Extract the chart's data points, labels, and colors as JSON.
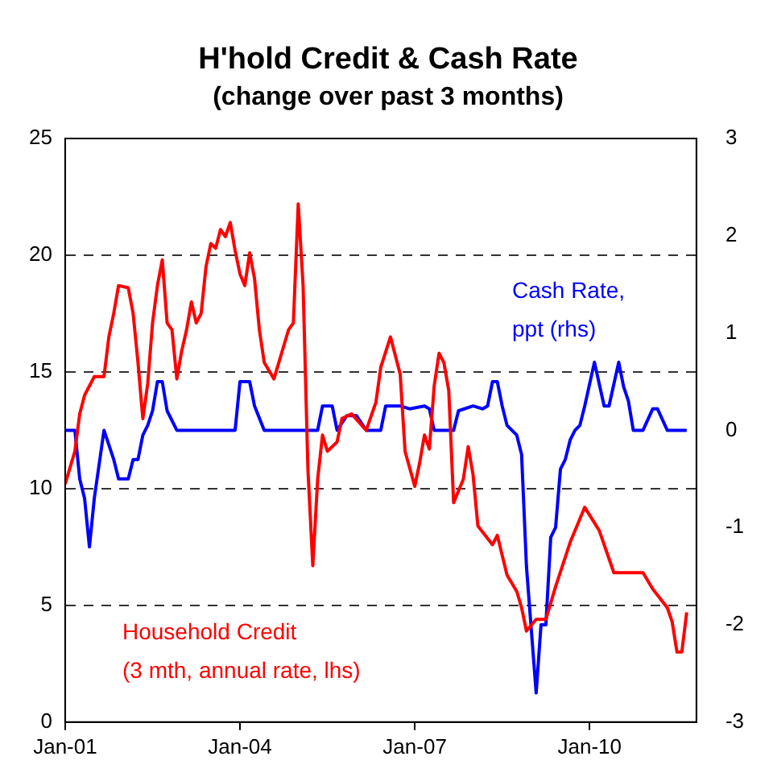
{
  "chart_data": {
    "type": "line",
    "title": "H'hold Credit & Cash Rate",
    "subtitle": "(change over past 3 months)",
    "xlim": [
      "2001-01",
      "2011-11"
    ],
    "xticks": [
      {
        "value": "2001-01",
        "label": "Jan-01"
      },
      {
        "value": "2004-01",
        "label": "Jan-04"
      },
      {
        "value": "2007-01",
        "label": "Jan-07"
      },
      {
        "value": "2010-01",
        "label": "Jan-10"
      }
    ],
    "ylim": [
      0,
      25
    ],
    "yticks": [
      0,
      5,
      10,
      15,
      20,
      25
    ],
    "y2lim": [
      -3,
      3
    ],
    "y2ticks": [
      -3,
      -2,
      -1,
      0,
      1,
      2,
      3
    ],
    "grid": "y",
    "line_style": "solid",
    "marker": "none",
    "series": [
      {
        "name": "Household Credit\n(3 mth, annual rate, lhs)",
        "color": "#ff0000",
        "x": [
          "2001-01",
          "2001-03",
          "2001-04",
          "2001-05",
          "2001-07",
          "2001-09",
          "2001-10",
          "2001-11",
          "2001-12",
          "2002-02",
          "2002-03",
          "2002-04",
          "2002-05",
          "2002-06",
          "2002-07",
          "2002-08",
          "2002-09",
          "2002-10",
          "2002-11",
          "2002-12",
          "2003-01",
          "2003-02",
          "2003-03",
          "2003-04",
          "2003-05",
          "2003-06",
          "2003-07",
          "2003-08",
          "2003-09",
          "2003-10",
          "2003-11",
          "2003-12",
          "2004-01",
          "2004-02",
          "2004-03",
          "2004-04",
          "2004-05",
          "2004-06",
          "2004-08",
          "2004-09",
          "2004-10",
          "2004-11",
          "2004-12",
          "2005-01",
          "2005-02",
          "2005-03",
          "2005-04",
          "2005-05",
          "2005-06",
          "2005-07",
          "2005-09",
          "2005-10",
          "2005-12",
          "2006-03",
          "2006-05",
          "2006-06",
          "2006-08",
          "2006-10",
          "2006-11",
          "2007-01",
          "2007-02",
          "2007-03",
          "2007-04",
          "2007-05",
          "2007-06",
          "2007-07",
          "2007-08",
          "2007-09",
          "2007-11",
          "2007-12",
          "2008-01",
          "2008-02",
          "2008-05",
          "2008-06",
          "2008-08",
          "2008-10",
          "2008-11",
          "2008-12",
          "2009-02",
          "2009-04",
          "2009-06",
          "2009-09",
          "2009-11",
          "2009-12",
          "2010-03",
          "2010-06",
          "2010-09",
          "2010-12",
          "2011-02",
          "2011-05",
          "2011-06",
          "2011-07",
          "2011-08",
          "2011-09"
        ],
        "values": [
          10.2,
          11.6,
          13.2,
          14.0,
          14.8,
          14.8,
          16.5,
          17.5,
          18.7,
          18.6,
          17.5,
          15.4,
          13.0,
          14.5,
          17.1,
          18.7,
          19.8,
          17.1,
          16.8,
          14.7,
          15.9,
          16.8,
          18.0,
          17.1,
          17.5,
          19.5,
          20.5,
          20.3,
          21.1,
          20.8,
          21.4,
          20.2,
          19.2,
          18.7,
          20.1,
          19.0,
          16.8,
          15.4,
          14.7,
          15.4,
          16.1,
          16.8,
          17.1,
          22.2,
          18.7,
          10.8,
          6.7,
          10.4,
          12.3,
          11.6,
          12.0,
          13.0,
          13.2,
          12.5,
          13.7,
          15.2,
          16.5,
          14.9,
          11.6,
          10.1,
          11.1,
          12.3,
          11.7,
          14.4,
          15.8,
          15.4,
          14.2,
          9.4,
          10.4,
          11.8,
          10.6,
          8.4,
          7.6,
          8.0,
          6.3,
          5.6,
          4.9,
          3.9,
          4.4,
          4.4,
          5.8,
          7.7,
          8.7,
          9.2,
          8.2,
          6.4,
          6.4,
          6.4,
          5.7,
          4.9,
          4.3,
          3.0,
          3.0,
          4.7
        ]
      },
      {
        "name": "Cash Rate,\nppt (rhs)",
        "color": "#0000ff",
        "axis": "y2",
        "x": [
          "2001-01",
          "2001-03",
          "2001-04",
          "2001-05",
          "2001-06",
          "2001-07",
          "2001-09",
          "2001-11",
          "2001-12",
          "2002-02",
          "2002-03",
          "2002-04",
          "2002-05",
          "2002-06",
          "2002-07",
          "2002-08",
          "2002-09",
          "2002-10",
          "2002-12",
          "2003-12",
          "2004-01",
          "2004-03",
          "2004-04",
          "2004-06",
          "2005-05",
          "2005-06",
          "2005-08",
          "2005-09",
          "2005-11",
          "2006-01",
          "2006-03",
          "2006-06",
          "2006-07",
          "2006-10",
          "2006-12",
          "2007-03",
          "2007-04",
          "2007-05",
          "2007-09",
          "2007-10",
          "2008-01",
          "2008-03",
          "2008-04",
          "2008-05",
          "2008-06",
          "2008-07",
          "2008-08",
          "2008-10",
          "2008-11",
          "2008-12",
          "2009-02",
          "2009-03",
          "2009-04",
          "2009-05",
          "2009-06",
          "2009-07",
          "2009-08",
          "2009-09",
          "2009-10",
          "2009-11",
          "2009-12",
          "2010-02",
          "2010-04",
          "2010-05",
          "2010-07",
          "2010-08",
          "2010-09",
          "2010-10",
          "2010-12",
          "2011-02",
          "2011-03",
          "2011-05",
          "2011-09"
        ],
        "values": [
          0,
          0,
          -0.5,
          -0.7,
          -1.2,
          -0.7,
          0,
          -0.3,
          -0.5,
          -0.5,
          -0.3,
          -0.3,
          -0.05,
          0.05,
          0.2,
          0.5,
          0.5,
          0.2,
          0,
          0,
          0.5,
          0.5,
          0.25,
          0,
          0,
          0.25,
          0.25,
          0,
          0.15,
          0.15,
          0,
          0,
          0.25,
          0.25,
          0.22,
          0.25,
          0.22,
          0,
          0,
          0.2,
          0.25,
          0.22,
          0.25,
          0.5,
          0.5,
          0.25,
          0.05,
          -0.05,
          -0.25,
          -1.4,
          -2.7,
          -2.0,
          -2.0,
          -1.1,
          -1.0,
          -0.4,
          -0.3,
          -0.1,
          0,
          0.05,
          0.25,
          0.7,
          0.25,
          0.25,
          0.7,
          0.45,
          0.3,
          0,
          0,
          0.22,
          0.22,
          0,
          0
        ]
      }
    ]
  }
}
